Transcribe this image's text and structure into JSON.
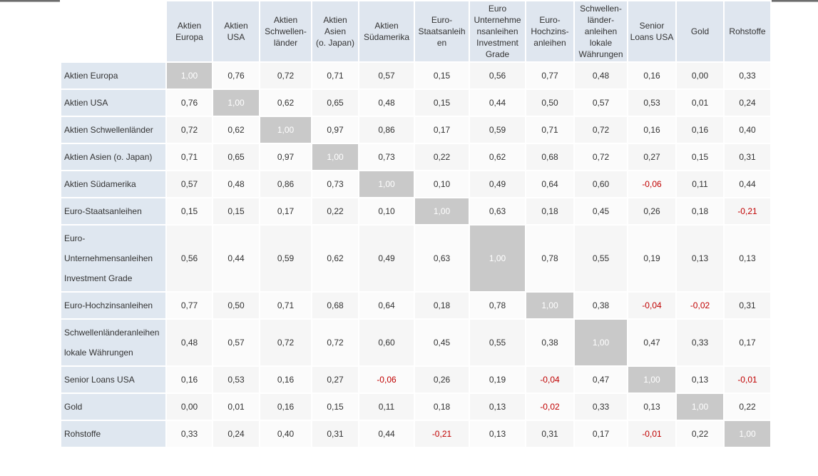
{
  "table": {
    "headers": [
      "Aktien\nEuropa",
      "Aktien\nUSA",
      "Aktien\nSchwellen-\nländer",
      "Aktien\nAsien\n(o. Japan)",
      "Aktien\nSüdamerika",
      "Euro-\nStaatsanleih\nen",
      "Euro\nUnternehme\nnsanleihen\nInvestment\nGrade",
      "Euro-\nHochzins-\nanleihen",
      "Schwellen-\nländer-\nanleihen\nlokale\nWährungen",
      "Senior\nLoans USA",
      "Gold",
      "Rohstoffe"
    ],
    "rows": [
      {
        "label": "Aktien Europa",
        "values": [
          "1,00",
          "0,76",
          "0,72",
          "0,71",
          "0,57",
          "0,15",
          "0,56",
          "0,77",
          "0,48",
          "0,16",
          "0,00",
          "0,33"
        ]
      },
      {
        "label": "Aktien USA",
        "values": [
          "0,76",
          "1,00",
          "0,62",
          "0,65",
          "0,48",
          "0,15",
          "0,44",
          "0,50",
          "0,57",
          "0,53",
          "0,01",
          "0,24"
        ]
      },
      {
        "label": "Aktien Schwellenländer",
        "values": [
          "0,72",
          "0,62",
          "1,00",
          "0,97",
          "0,86",
          "0,17",
          "0,59",
          "0,71",
          "0,72",
          "0,16",
          "0,16",
          "0,40"
        ]
      },
      {
        "label": "Aktien Asien (o. Japan)",
        "values": [
          "0,71",
          "0,65",
          "0,97",
          "1,00",
          "0,73",
          "0,22",
          "0,62",
          "0,68",
          "0,72",
          "0,27",
          "0,15",
          "0,31"
        ]
      },
      {
        "label": "Aktien Südamerika",
        "values": [
          "0,57",
          "0,48",
          "0,86",
          "0,73",
          "1,00",
          "0,10",
          "0,49",
          "0,64",
          "0,60",
          "-0,06",
          "0,11",
          "0,44"
        ]
      },
      {
        "label": "Euro-Staatsanleihen",
        "values": [
          "0,15",
          "0,15",
          "0,17",
          "0,22",
          "0,10",
          "1,00",
          "0,63",
          "0,18",
          "0,45",
          "0,26",
          "0,18",
          "-0,21"
        ]
      },
      {
        "label": "Euro-\nUnternehmensanleihen\nInvestment Grade",
        "values": [
          "0,56",
          "0,44",
          "0,59",
          "0,62",
          "0,49",
          "0,63",
          "1,00",
          "0,78",
          "0,55",
          "0,19",
          "0,13",
          "0,13"
        ]
      },
      {
        "label": "Euro-Hochzinsanleihen",
        "values": [
          "0,77",
          "0,50",
          "0,71",
          "0,68",
          "0,64",
          "0,18",
          "0,78",
          "1,00",
          "0,38",
          "-0,04",
          "-0,02",
          "0,31"
        ]
      },
      {
        "label": "Schwellenländeranleihen\nlokale Währungen",
        "values": [
          "0,48",
          "0,57",
          "0,72",
          "0,72",
          "0,60",
          "0,45",
          "0,55",
          "0,38",
          "1,00",
          "0,47",
          "0,33",
          "0,17"
        ]
      },
      {
        "label": "Senior Loans USA",
        "values": [
          "0,16",
          "0,53",
          "0,16",
          "0,27",
          "-0,06",
          "0,26",
          "0,19",
          "-0,04",
          "0,47",
          "1,00",
          "0,13",
          "-0,01"
        ]
      },
      {
        "label": "Gold",
        "values": [
          "0,00",
          "0,01",
          "0,16",
          "0,15",
          "0,11",
          "0,18",
          "0,13",
          "-0,02",
          "0,33",
          "0,13",
          "1,00",
          "0,22"
        ]
      },
      {
        "label": "Rohstoffe",
        "values": [
          "0,33",
          "0,24",
          "0,40",
          "0,31",
          "0,44",
          "-0,21",
          "0,13",
          "0,31",
          "0,17",
          "-0,01",
          "0,22",
          "1,00"
        ]
      }
    ]
  }
}
